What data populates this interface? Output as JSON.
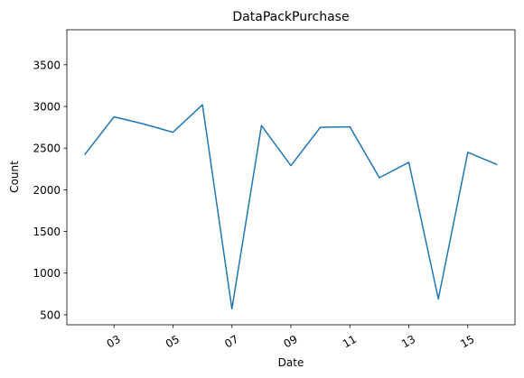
{
  "chart_data": {
    "type": "line",
    "title": "DataPackPurchase",
    "xlabel": "Date",
    "ylabel": "Count",
    "x": [
      "02",
      "03",
      "04",
      "05",
      "06",
      "07",
      "08",
      "09",
      "10",
      "11",
      "12",
      "13",
      "14",
      "15",
      "16"
    ],
    "x_tick_labels": [
      "03",
      "05",
      "07",
      "09",
      "11",
      "13",
      "15"
    ],
    "series": [
      {
        "values": [
          2420,
          2875,
          2790,
          2690,
          3020,
          570,
          2770,
          2290,
          2750,
          2755,
          2145,
          2330,
          690,
          2450,
          2300
        ]
      }
    ],
    "xlim": [
      1.4,
      16.6
    ],
    "ylim": [
      380,
      3920
    ],
    "yticks": [
      500,
      1000,
      1500,
      2000,
      2500,
      3000,
      3500
    ],
    "grid": false,
    "line_color": "#1f77b4"
  }
}
